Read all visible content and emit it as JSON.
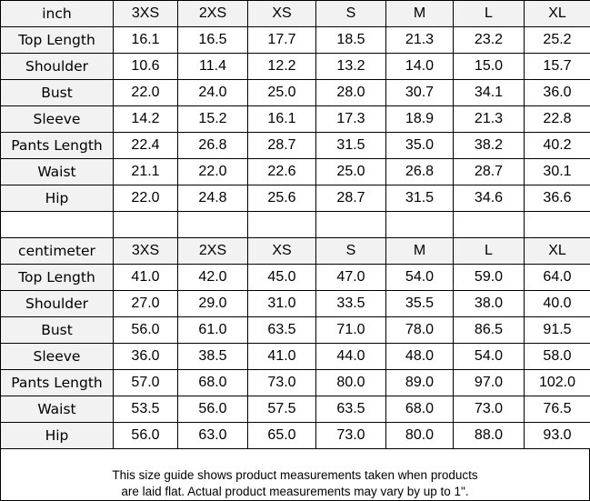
{
  "inch_table": {
    "unit": "inch",
    "sizes": [
      "3XS",
      "2XS",
      "XS",
      "S",
      "M",
      "L",
      "XL"
    ],
    "rows": [
      {
        "label": "Top Length",
        "values": [
          "16.1",
          "16.5",
          "17.7",
          "18.5",
          "21.3",
          "23.2",
          "25.2"
        ]
      },
      {
        "label": "Shoulder",
        "values": [
          "10.6",
          "11.4",
          "12.2",
          "13.2",
          "14.0",
          "15.0",
          "15.7"
        ]
      },
      {
        "label": "Bust",
        "values": [
          "22.0",
          "24.0",
          "25.0",
          "28.0",
          "30.7",
          "34.1",
          "36.0"
        ]
      },
      {
        "label": "Sleeve",
        "values": [
          "14.2",
          "15.2",
          "16.1",
          "17.3",
          "18.9",
          "21.3",
          "22.8"
        ]
      },
      {
        "label": "Pants Length",
        "values": [
          "22.4",
          "26.8",
          "28.7",
          "31.5",
          "35.0",
          "38.2",
          "40.2"
        ]
      },
      {
        "label": "Waist",
        "values": [
          "21.1",
          "22.0",
          "22.6",
          "25.0",
          "26.8",
          "28.7",
          "30.1"
        ]
      },
      {
        "label": "Hip",
        "values": [
          "22.0",
          "24.8",
          "25.6",
          "28.7",
          "31.5",
          "34.6",
          "36.6"
        ]
      }
    ]
  },
  "cm_table": {
    "unit": "centimeter",
    "sizes": [
      "3XS",
      "2XS",
      "XS",
      "S",
      "M",
      "L",
      "XL"
    ],
    "rows": [
      {
        "label": "Top Length",
        "values": [
          "41.0",
          "42.0",
          "45.0",
          "47.0",
          "54.0",
          "59.0",
          "64.0"
        ]
      },
      {
        "label": "Shoulder",
        "values": [
          "27.0",
          "29.0",
          "31.0",
          "33.5",
          "35.5",
          "38.0",
          "40.0"
        ]
      },
      {
        "label": "Bust",
        "values": [
          "56.0",
          "61.0",
          "63.5",
          "71.0",
          "78.0",
          "86.5",
          "91.5"
        ]
      },
      {
        "label": "Sleeve",
        "values": [
          "36.0",
          "38.5",
          "41.0",
          "44.0",
          "48.0",
          "54.0",
          "58.0"
        ]
      },
      {
        "label": "Pants Length",
        "values": [
          "57.0",
          "68.0",
          "73.0",
          "80.0",
          "89.0",
          "97.0",
          "102.0"
        ]
      },
      {
        "label": "Waist",
        "values": [
          "53.5",
          "56.0",
          "57.5",
          "63.5",
          "68.0",
          "73.0",
          "76.5"
        ]
      },
      {
        "label": "Hip",
        "values": [
          "56.0",
          "63.0",
          "65.0",
          "73.0",
          "80.0",
          "88.0",
          "93.0"
        ]
      }
    ]
  },
  "footer": {
    "line1": "This size guide shows product measurements taken when products",
    "line2": "are laid flat. Actual product measurements may vary by up to 1\"."
  },
  "colors": {
    "header_bg": "#f2f2f2",
    "border": "#000000"
  }
}
